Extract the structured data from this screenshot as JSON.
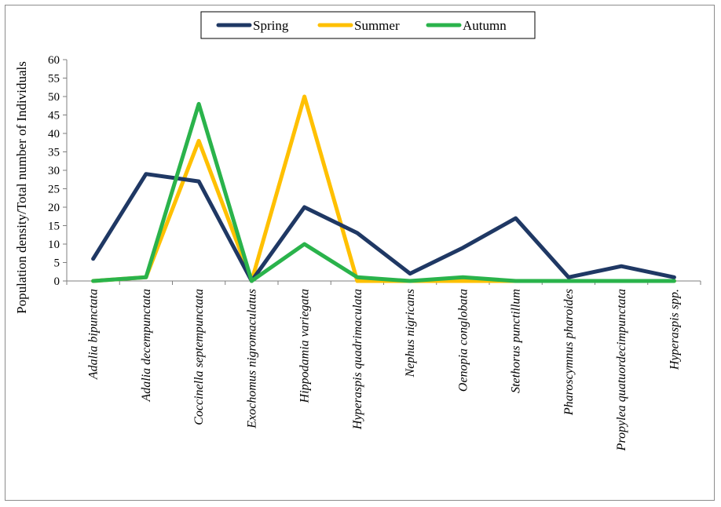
{
  "chart_data": {
    "type": "line",
    "title": "",
    "xlabel": "",
    "ylabel": "Population density/Total number of Individuals",
    "ylim": [
      0,
      60
    ],
    "yticks": [
      0,
      5,
      10,
      15,
      20,
      25,
      30,
      35,
      40,
      45,
      50,
      55,
      60
    ],
    "grid": false,
    "legend_position": "top-center",
    "categories": [
      "Adalia bipunctata",
      "Adalia decempunctata",
      "Coccinella septempunctata",
      "Exochomus nigromaculatus",
      "Hippodamia variegata",
      "Hyperaspis quadrimaculata",
      "Nephus nigricans",
      "Oenopia conglobata",
      "Stethorus punctillum",
      "Pharoscymnus pharoides",
      "Propylea quatuordecimpunctata",
      "Hyperaspis spp."
    ],
    "series": [
      {
        "name": "Spring",
        "color": "#1f3864",
        "values": [
          6,
          29,
          27,
          0,
          20,
          13,
          2,
          9,
          17,
          1,
          4,
          1
        ]
      },
      {
        "name": "Summer",
        "color": "#ffc000",
        "values": [
          0,
          1,
          38,
          0,
          50,
          0,
          0,
          0,
          0,
          0,
          0,
          0
        ]
      },
      {
        "name": "Autumn",
        "color": "#2ab34b",
        "values": [
          0,
          1,
          48,
          0,
          10,
          1,
          0,
          1,
          0,
          0,
          0,
          0
        ]
      }
    ]
  }
}
